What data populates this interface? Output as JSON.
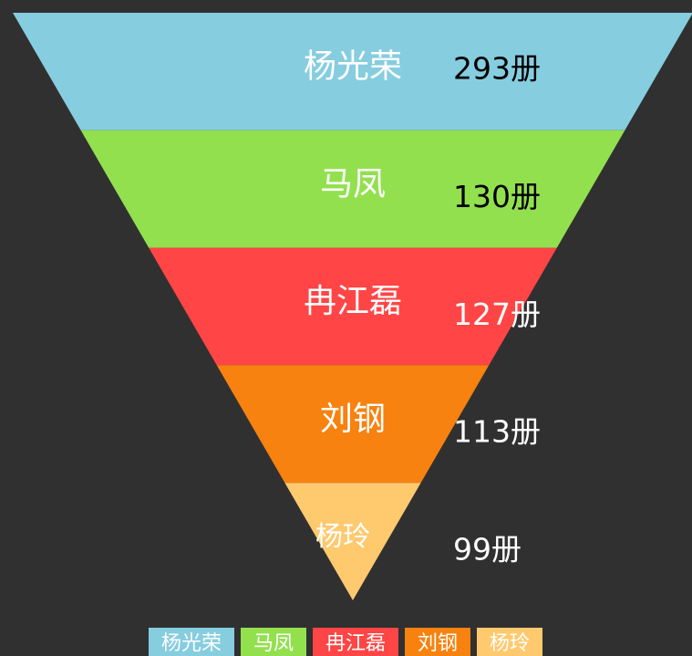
{
  "chart_data": {
    "type": "funnel",
    "categories": [
      "杨光荣",
      "马凤",
      "冉江磊",
      "刘钢",
      "杨玲"
    ],
    "values": [
      293,
      130,
      127,
      113,
      99
    ],
    "value_labels": [
      "293册",
      "130册",
      "127册",
      "113册",
      "99册"
    ],
    "colors": [
      "#86cde0",
      "#93e04f",
      "#ff4545",
      "#f7820f",
      "#ffc96e"
    ],
    "label_colors": [
      "#000000",
      "#000000",
      "#ffffff",
      "#ffffff",
      "#ffffff"
    ],
    "legend": "bottom"
  }
}
